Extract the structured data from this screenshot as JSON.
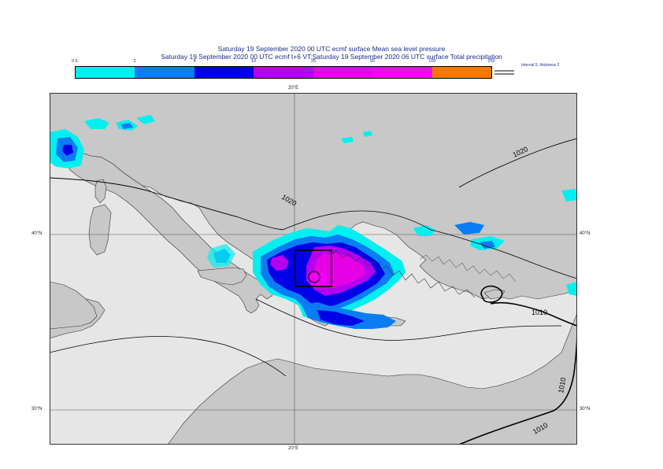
{
  "header": {
    "title_line1": "Saturday 19 September 2020 00 UTC ecmf surface  Mean sea level pressure",
    "title_line2": "Saturday 19 September 2020 00 UTC ecmf t+6 VT:Saturday 19 September 2020 06 UTC surface  Total precipitation"
  },
  "legend": {
    "ticks": [
      "0.5",
      "2",
      "4",
      "10",
      "25",
      "50",
      "100",
      "250"
    ],
    "colors": [
      "#00f0f0",
      "#0a7df5",
      "#0000e6",
      "#b400f0",
      "#e600e6",
      "#f500f5",
      "#f57800",
      "#f50000"
    ],
    "interval_note": "Interval 5, thickness 2"
  },
  "map": {
    "colors": {
      "land": "#c8c8c8",
      "sea": "#e6e6e6",
      "coast": "#333333",
      "isobar": "#000000"
    },
    "axes": {
      "top_lon": "20°E",
      "bottom_lon": "20°E",
      "left_lat_upper": "40°N",
      "left_lat_lower": "30°N",
      "right_lat_upper": "40°N",
      "right_lat_lower": "30°N"
    },
    "isobar_labels": [
      "1020",
      "1020",
      "1010",
      "1010",
      "1010"
    ]
  }
}
